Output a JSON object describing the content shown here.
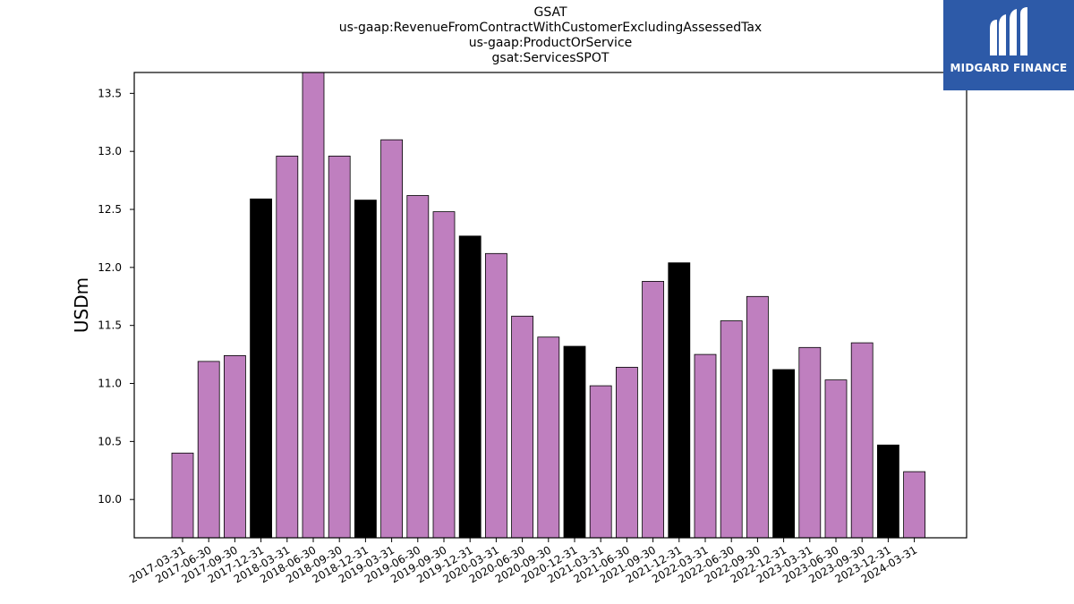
{
  "chart_data": {
    "type": "bar",
    "title_lines": [
      "GSAT",
      "us-gaap:RevenueFromContractWithCustomerExcludingAssessedTax",
      "us-gaap:ProductOrService",
      "gsat:ServicesSPOT"
    ],
    "ylabel": "USDm",
    "xlabel": "",
    "ylim": [
      9.67,
      13.68
    ],
    "yticks": [
      "10.0",
      "10.5",
      "11.0",
      "11.5",
      "12.0",
      "12.5",
      "13.0",
      "13.5"
    ],
    "grid": false,
    "categories": [
      "2017-03-31",
      "2017-06-30",
      "2017-09-30",
      "2017-12-31",
      "2018-03-31",
      "2018-06-30",
      "2018-09-30",
      "2018-12-31",
      "2019-03-31",
      "2019-06-30",
      "2019-09-30",
      "2019-12-31",
      "2020-03-31",
      "2020-06-30",
      "2020-09-30",
      "2020-12-31",
      "2021-03-31",
      "2021-06-30",
      "2021-09-30",
      "2021-12-31",
      "2022-03-31",
      "2022-06-30",
      "2022-09-30",
      "2022-12-31",
      "2023-03-31",
      "2023-06-30",
      "2023-09-30",
      "2023-12-31",
      "2024-03-31"
    ],
    "values": [
      10.4,
      11.19,
      11.24,
      12.59,
      12.96,
      13.68,
      12.96,
      12.58,
      13.1,
      12.62,
      12.48,
      12.27,
      12.12,
      11.58,
      11.4,
      11.32,
      10.98,
      11.14,
      11.88,
      12.04,
      11.25,
      11.54,
      11.75,
      11.12,
      11.31,
      11.03,
      11.35,
      10.47,
      10.24
    ],
    "highlight_quarter_end": "12-31",
    "colors": {
      "default_bar": "#bf7fbf",
      "highlight_bar": "#000000",
      "edge": "#000000"
    }
  },
  "logo": {
    "text": "MIDGARD FINANCE",
    "background": "#2d5aa8"
  }
}
